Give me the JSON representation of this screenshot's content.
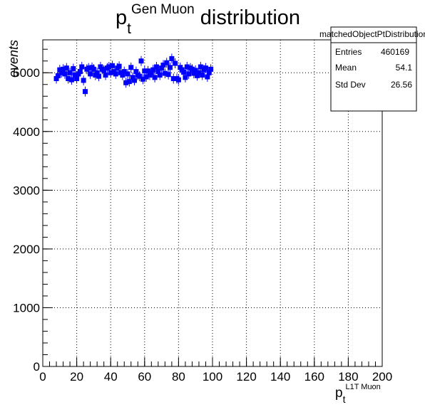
{
  "chart_data": {
    "type": "scatter",
    "title": {
      "main": "p",
      "sub": "t",
      "sup": "Gen Muon",
      "rest": " distribution"
    },
    "xlabel": {
      "main": "p",
      "sub": "t",
      "sup": "L1T Muon"
    },
    "ylabel": "events",
    "xlim": [
      0,
      200
    ],
    "ylim": [
      0,
      5560
    ],
    "xticks": [
      0,
      20,
      40,
      60,
      80,
      100,
      120,
      140,
      160,
      180,
      200
    ],
    "yticks": [
      0,
      1000,
      2000,
      3000,
      4000,
      5000
    ],
    "grid": true,
    "marker_color": "#0000ff",
    "series": [
      {
        "x": [
          8,
          9,
          10,
          11,
          12,
          13,
          14,
          15,
          16,
          17,
          18,
          19,
          20,
          21,
          22,
          23,
          24,
          25,
          26,
          27,
          28,
          29,
          30,
          31,
          32,
          33,
          34,
          35,
          36,
          37,
          38,
          39,
          40,
          41,
          42,
          43,
          44,
          45,
          46,
          47,
          48,
          49,
          50,
          51,
          52,
          53,
          54,
          55,
          56,
          57,
          58,
          59,
          60,
          61,
          62,
          63,
          64,
          65,
          66,
          67,
          68,
          69,
          70,
          71,
          72,
          73,
          74,
          75,
          76,
          77,
          78,
          79,
          80,
          81,
          82,
          83,
          84,
          85,
          86,
          87,
          88,
          89,
          90,
          91,
          92,
          93,
          94,
          95,
          96,
          97,
          98,
          99
        ],
        "y": [
          4900,
          4950,
          5050,
          5000,
          5060,
          4980,
          5080,
          4900,
          5000,
          4880,
          5070,
          4960,
          4900,
          4980,
          5020,
          5100,
          4870,
          4680,
          5060,
          5080,
          4980,
          5090,
          5060,
          4960,
          5000,
          4940,
          5100,
          5060,
          5040,
          4960,
          5080,
          5100,
          5000,
          5120,
          5020,
          4980,
          5080,
          5110,
          5000,
          4960,
          5020,
          4830,
          4980,
          4850,
          5090,
          4920,
          4870,
          5020,
          4960,
          4940,
          5200,
          4890,
          5030,
          4930,
          5030,
          4960,
          5000,
          5050,
          4920,
          5100,
          5020,
          4960,
          5080,
          5130,
          4990,
          5170,
          4970,
          5090,
          5240,
          4900,
          5160,
          4900,
          4880,
          5090,
          5050,
          5010,
          4920,
          5100,
          4980,
          5080,
          5060,
          4990,
          5040,
          4950,
          5000,
          5100,
          4960,
          5050,
          5080,
          4930,
          5000,
          5060
        ]
      }
    ]
  },
  "stats_box": {
    "name": "matchedObjectPtDistribution",
    "rows": [
      {
        "label": "Entries",
        "value": "460169"
      },
      {
        "label": "Mean",
        "value": "54.1"
      },
      {
        "label": "Std Dev",
        "value": "26.56"
      }
    ]
  }
}
